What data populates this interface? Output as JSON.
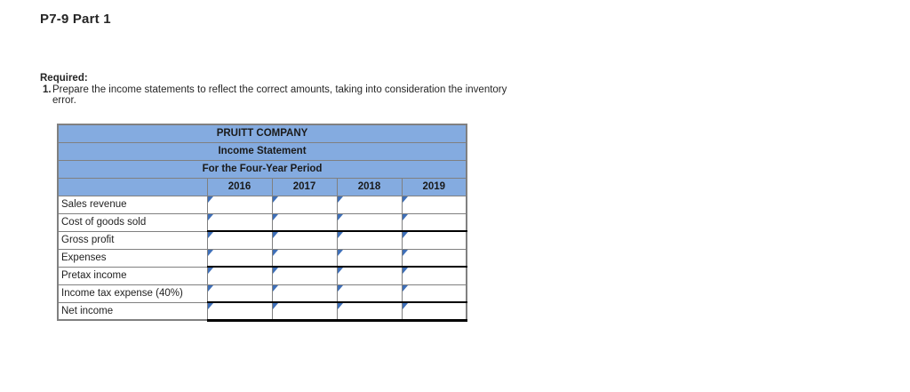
{
  "page": {
    "title": "P7-9 Part 1"
  },
  "required": {
    "label": "Required:",
    "items": [
      {
        "number": "1.",
        "text": "Prepare the income statements to reflect the correct amounts, taking into consideration the inventory error."
      }
    ]
  },
  "table": {
    "company": "PRUITT COMPANY",
    "statement_title": "Income Statement",
    "period": "For the Four-Year Period",
    "years": [
      "2016",
      "2017",
      "2018",
      "2019"
    ],
    "rows": [
      {
        "label": "Sales revenue",
        "values": [
          "",
          "",
          "",
          ""
        ]
      },
      {
        "label": "Cost of goods sold",
        "values": [
          "",
          "",
          "",
          ""
        ]
      },
      {
        "label": "Gross profit",
        "values": [
          "",
          "",
          "",
          ""
        ],
        "subtotal_line_above": true
      },
      {
        "label": "Expenses",
        "values": [
          "",
          "",
          "",
          ""
        ]
      },
      {
        "label": "Pretax income",
        "values": [
          "",
          "",
          "",
          ""
        ],
        "subtotal_line_above": true
      },
      {
        "label": "Income tax expense (40%)",
        "values": [
          "",
          "",
          "",
          ""
        ]
      },
      {
        "label": "Net income",
        "values": [
          "",
          "",
          "",
          ""
        ],
        "subtotal_line_above": true,
        "total_line_below": true
      }
    ]
  },
  "icons": {
    "input_flag": "blue-corner-triangle-flag"
  },
  "colors": {
    "header_blue": "#84ABE0",
    "grid_gray": "#808080",
    "subtotal_line_black": "#000000",
    "flag_blue": "#3E6FB8"
  }
}
